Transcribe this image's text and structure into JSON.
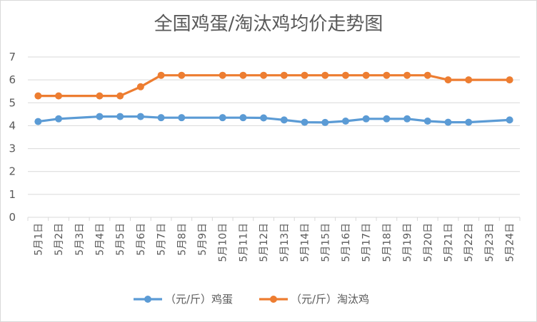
{
  "chart_data": {
    "type": "line",
    "title": "全国鸡蛋/淘汰鸡均价走势图",
    "xlabel": "",
    "ylabel": "",
    "categories": [
      "5月1日",
      "5月2日",
      "5月3日",
      "5月4日",
      "5月5日",
      "5月6日",
      "5月7日",
      "5月8日",
      "5月9日",
      "5月10日",
      "5月11日",
      "5月12日",
      "5月13日",
      "5月14日",
      "5月15日",
      "5月16日",
      "5月17日",
      "5月18日",
      "5月19日",
      "5月20日",
      "5月21日",
      "5月22日",
      "5月23日",
      "5月24日"
    ],
    "ylim": [
      0,
      7
    ],
    "yticks": [
      0,
      1,
      2,
      3,
      4,
      5,
      6,
      7
    ],
    "grid": true,
    "legend_position": "bottom",
    "series": [
      {
        "name": "（元/斤）鸡蛋",
        "color": "#5b9bd5",
        "values": [
          4.18,
          4.3,
          null,
          4.4,
          4.4,
          4.4,
          4.35,
          4.35,
          null,
          4.35,
          4.35,
          4.34,
          4.25,
          4.15,
          4.14,
          4.2,
          4.3,
          4.3,
          4.3,
          4.2,
          4.15,
          4.15,
          null,
          4.25
        ]
      },
      {
        "name": "（元/斤）淘汰鸡",
        "color": "#ed7d31",
        "values": [
          5.3,
          5.3,
          null,
          5.3,
          5.3,
          5.7,
          6.2,
          6.2,
          null,
          6.2,
          6.2,
          6.2,
          6.2,
          6.2,
          6.2,
          6.2,
          6.2,
          6.2,
          6.2,
          6.2,
          6.0,
          6.0,
          null,
          6.0
        ]
      }
    ]
  }
}
